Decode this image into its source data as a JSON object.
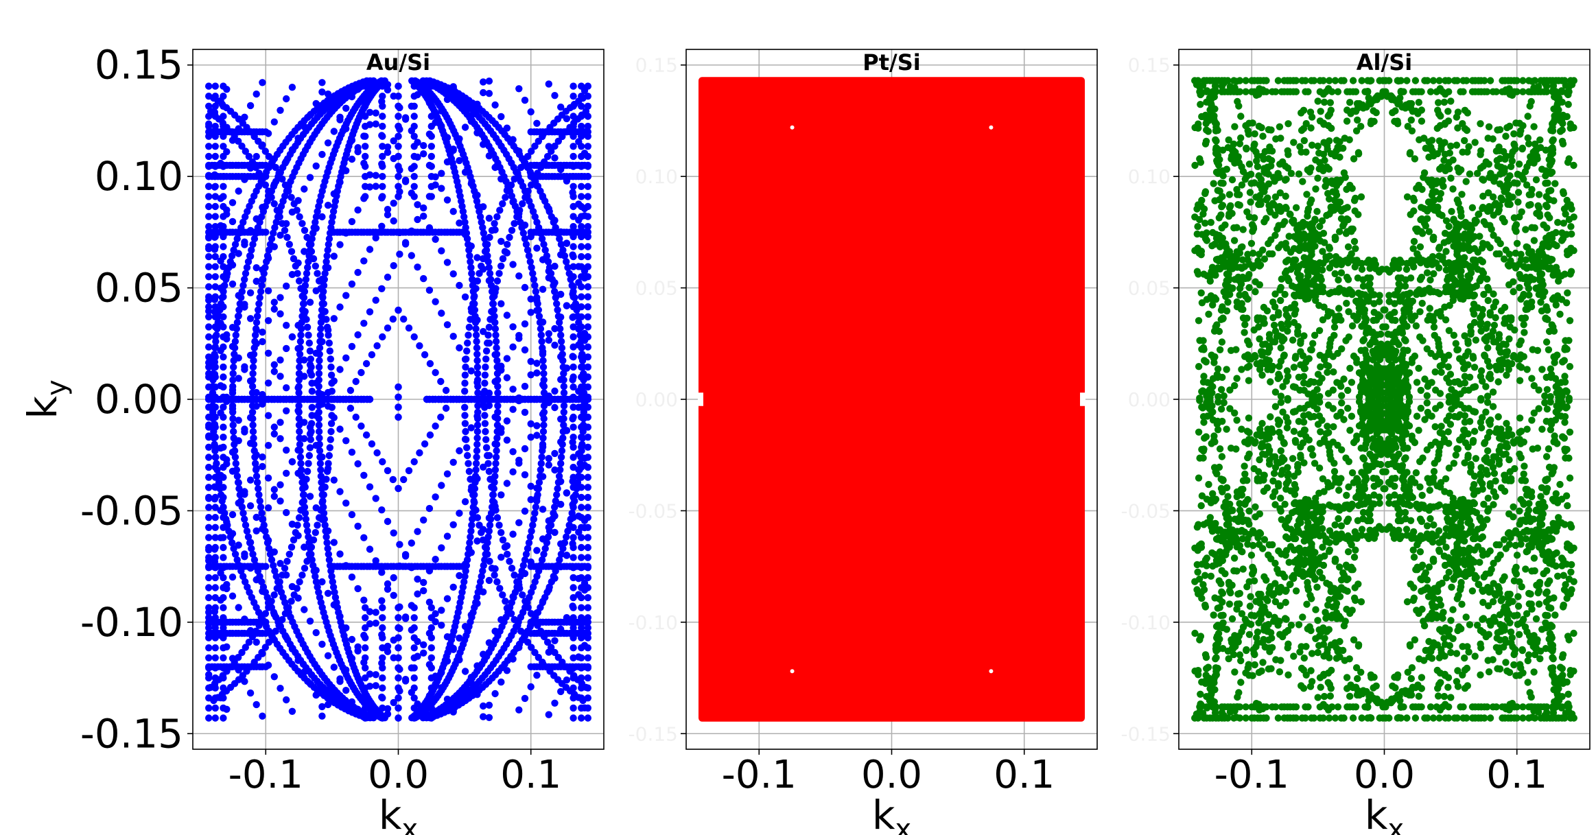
{
  "chart_data": [
    {
      "type": "scatter",
      "title": "Au/Si",
      "xlabel": "k",
      "xlabel_sub": "x",
      "ylabel": "k",
      "ylabel_sub": "y",
      "xlim": [
        -0.155,
        0.155
      ],
      "ylim": [
        -0.157,
        0.157
      ],
      "xticks": [
        -0.1,
        0.0,
        0.1
      ],
      "xtick_labels": [
        "-0.1",
        "0.0",
        "0.1"
      ],
      "yticks": [
        0.15,
        0.1,
        0.05,
        0.0,
        -0.05,
        -0.1,
        -0.15
      ],
      "ytick_labels": [
        "0.15",
        "0.10",
        "0.05",
        "0.00",
        "-0.05",
        "-0.10",
        "-0.15"
      ],
      "grid": true,
      "color": "#0000ff",
      "pattern": "arcs-and-diagonals",
      "extent": [
        -0.143,
        0.143
      ]
    },
    {
      "type": "scatter",
      "title": "Pt/Si",
      "xlabel": "k",
      "xlabel_sub": "x",
      "ylabel": "",
      "xlim": [
        -0.155,
        0.155
      ],
      "ylim": [
        -0.157,
        0.157
      ],
      "xticks": [
        -0.1,
        0.0,
        0.1
      ],
      "xtick_labels": [
        "-0.1",
        "0.0",
        "0.1"
      ],
      "yticks": [
        0.15,
        0.1,
        0.05,
        0.0,
        -0.05,
        -0.1,
        -0.15
      ],
      "ytick_labels": [
        "0.15",
        "0.10",
        "0.05",
        "0.00",
        "-0.05",
        "-0.10",
        "-0.15"
      ],
      "grid": true,
      "color": "#ff0000",
      "pattern": "filled",
      "extent": [
        -0.143,
        0.143
      ]
    },
    {
      "type": "scatter",
      "title": "Al/Si",
      "xlabel": "k",
      "xlabel_sub": "x",
      "ylabel": "",
      "xlim": [
        -0.155,
        0.155
      ],
      "ylim": [
        -0.157,
        0.157
      ],
      "xticks": [
        -0.1,
        0.0,
        0.1
      ],
      "xtick_labels": [
        "-0.1",
        "0.0",
        "0.1"
      ],
      "yticks": [
        0.15,
        0.1,
        0.05,
        0.0,
        -0.05,
        -0.1,
        -0.15
      ],
      "ytick_labels": [
        "0.15",
        "0.10",
        "0.05",
        "0.00",
        "-0.05",
        "-0.10",
        "-0.15"
      ],
      "grid": true,
      "color": "#008000",
      "pattern": "patchy",
      "extent": [
        -0.143,
        0.143
      ]
    }
  ]
}
